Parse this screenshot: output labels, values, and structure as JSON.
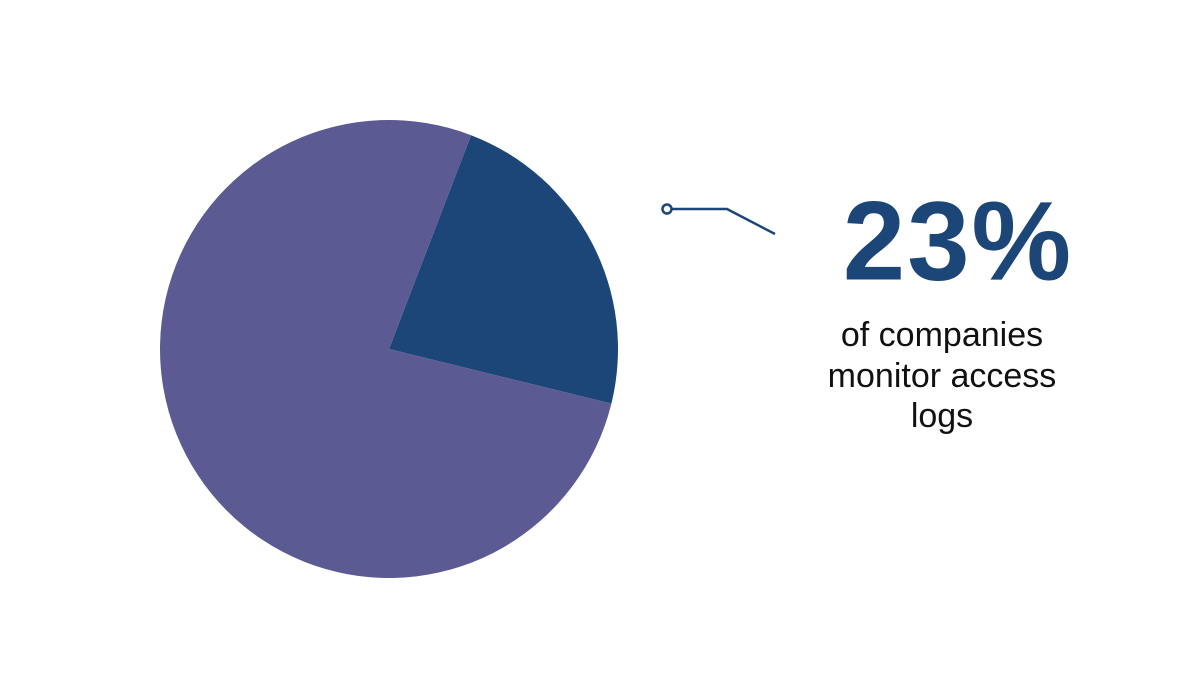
{
  "chart_data": {
    "type": "pie",
    "values": [
      23,
      77
    ],
    "value_labels": [
      "23%",
      null
    ],
    "colors": [
      "#1b4677",
      "#5c5a93"
    ],
    "annotation": [
      "of companies",
      "monitor access",
      "logs"
    ]
  }
}
